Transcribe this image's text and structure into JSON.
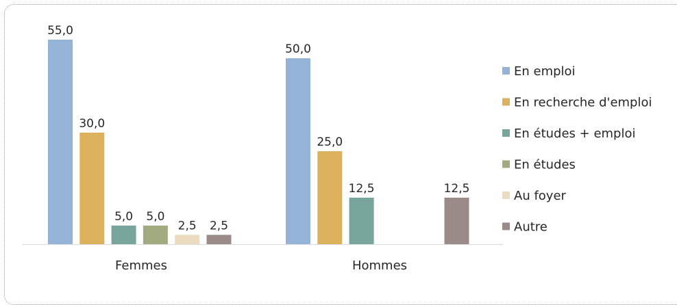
{
  "chart_data": {
    "type": "bar",
    "categories": [
      "Femmes",
      "Hommes"
    ],
    "series": [
      {
        "name": "En emploi",
        "color": "#95b3d7",
        "values": [
          55.0,
          50.0
        ]
      },
      {
        "name": "En recherche d'emploi",
        "color": "#dbb15c",
        "values": [
          30.0,
          25.0
        ]
      },
      {
        "name": "En études + emploi",
        "color": "#78a59b",
        "values": [
          5.0,
          12.5
        ]
      },
      {
        "name": "En études",
        "color": "#a0ab7f",
        "values": [
          5.0,
          null
        ]
      },
      {
        "name": "Au foyer",
        "color": "#ebdcc0",
        "values": [
          2.5,
          null
        ]
      },
      {
        "name": "Autre",
        "color": "#9a8b88",
        "values": [
          2.5,
          12.5
        ]
      }
    ],
    "ylim": [
      0,
      55
    ],
    "decimal_separator": ",",
    "legend_position": "right",
    "grid": false
  }
}
